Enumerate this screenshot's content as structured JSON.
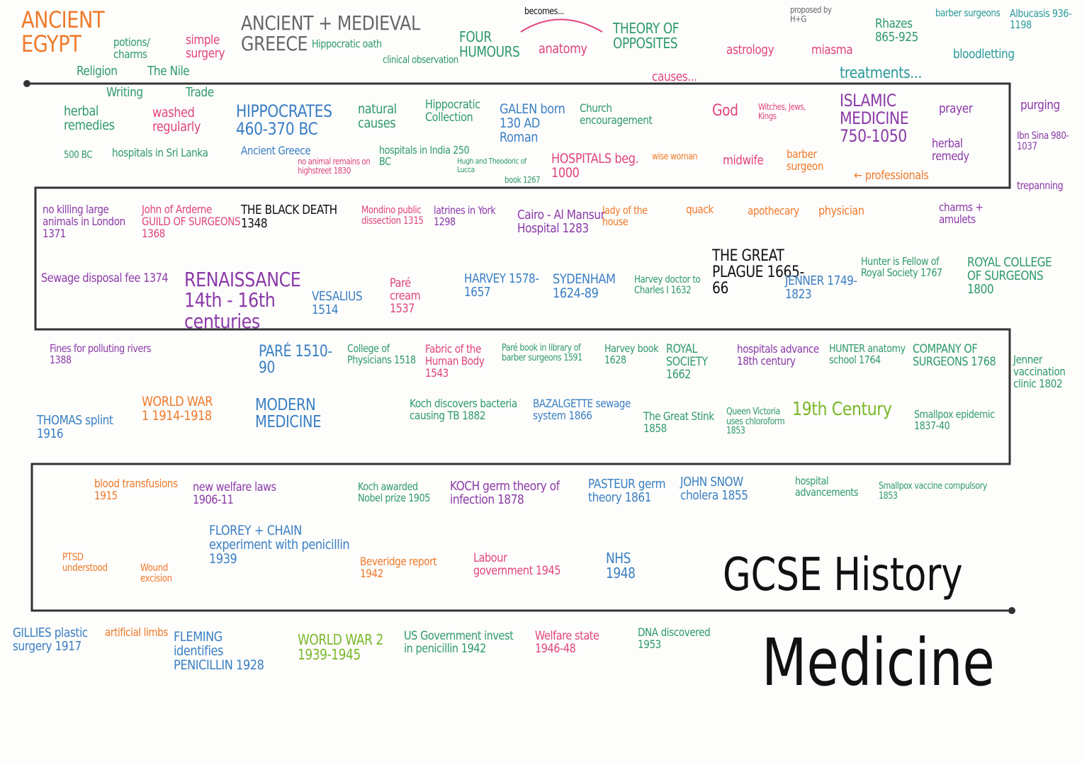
{
  "title": {
    "line1": "GCSE History",
    "line2": "Medicine"
  },
  "notes": [
    "ANCIENT EGYPT",
    "potions/ charms",
    "simple surgery",
    "Religion",
    "The Nile",
    "ANCIENT + MEDIEVAL GREECE",
    "Hippocratic oath",
    "clinical observation",
    "becomes...",
    "FOUR HUMOURS",
    "anatomy",
    "THEORY OF OPPOSITES",
    "causes...",
    "proposed by H+G",
    "astrology",
    "miasma",
    "Rhazes 865-925",
    "barber surgeons",
    "Albucasis 936-1198",
    "bloodletting",
    "treatments...",
    "Writing",
    "Trade",
    "herbal remedies",
    "washed regularly",
    "500 BC",
    "hospitals in Sri Lanka",
    "HIPPOCRATES 460-370 BC",
    "Ancient Greece",
    "natural causes",
    "Hippocratic Collection",
    "GALEN born 130 AD Roman",
    "Church encouragement",
    "hospitals in India 250 BC",
    "no animal remains on highstreet 1830",
    "Hugh and Theodoric of Lucca",
    "book 1267",
    "HOSPITALS beg. 1000",
    "wise woman",
    "God",
    "Witches, Jews, Kings",
    "midwife",
    "barber surgeon",
    "ISLAMIC MEDICINE 750-1050",
    "prayer",
    "herbal remedy",
    "← professionals",
    "purging",
    "Ibn Sina 980-1037",
    "trepanning",
    "charms + amulets",
    "no killing large animals in London 1371",
    "John of Arderne GUILD OF SURGEONS 1368",
    "THE BLACK DEATH 1348",
    "Mondino public dissection 1315",
    "latrines in York 1298",
    "Cairo - Al Mansur Hospital 1283",
    "lady of the house",
    "quack",
    "apothecary",
    "physician",
    "Sewage disposal fee 1374",
    "RENAISSANCE 14th - 16th centuries",
    "VESALIUS 1514",
    "Paré cream 1537",
    "HARVEY 1578-1657",
    "SYDENHAM 1624-89",
    "Harvey doctor to Charles I 1632",
    "THE GREAT PLAGUE 1665-66",
    "JENNER 1749-1823",
    "Hunter is Fellow of Royal Society 1767",
    "ROYAL COLLEGE OF SURGEONS 1800",
    "Fines for polluting rivers 1388",
    "PARÉ 1510-90",
    "College of Physicians 1518",
    "Fabric of the Human Body 1543",
    "Paré book in library of barber surgeons 1591",
    "Harvey book 1628",
    "ROYAL SOCIETY 1662",
    "hospitals advance 18th century",
    "HUNTER anatomy school 1764",
    "COMPANY OF SURGEONS 1768",
    "Jenner vaccination clinic 1802",
    "THOMAS splint 1916",
    "WORLD WAR 1 1914-1918",
    "MODERN MEDICINE",
    "Koch discovers bacteria causing TB 1882",
    "BAZALGETTE sewage system 1866",
    "The Great Stink 1858",
    "Queen Victoria uses chloroform 1853",
    "19th Century",
    "Smallpox epidemic 1837-40",
    "blood transfusions 1915",
    "new welfare laws 1906-11",
    "Koch awarded Nobel prize 1905",
    "KOCH germ theory of infection 1878",
    "PASTEUR germ theory 1861",
    "JOHN SNOW cholera 1855",
    "hospital advancements",
    "Smallpox vaccine compulsory 1853",
    "FLOREY + CHAIN experiment with penicillin 1939",
    "PTSD understood",
    "Wound excision",
    "Beveridge report 1942",
    "Labour government 1945",
    "NHS 1948",
    "GILLIES plastic surgery 1917",
    "artificial limbs",
    "FLEMING identifies PENICILLIN 1928",
    "WORLD WAR 2 1939-1945",
    "US Government invest in penicillin 1942",
    "Welfare state 1946-48",
    "DNA discovered 1953"
  ]
}
